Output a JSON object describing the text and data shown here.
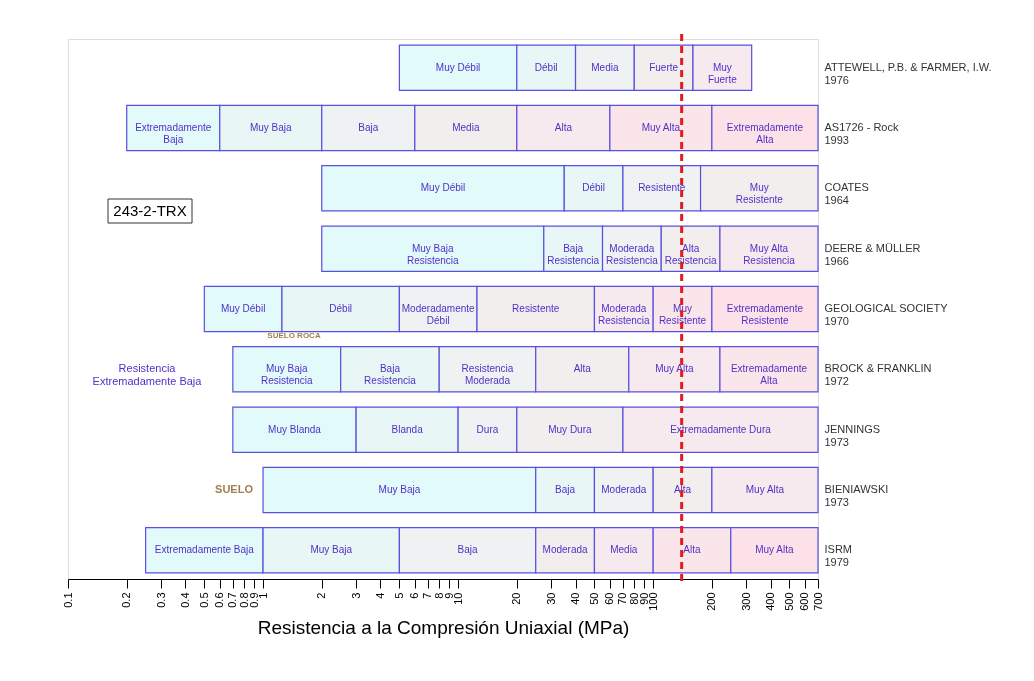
{
  "chart_data": {
    "type": "bar",
    "orientation": "horizontal",
    "log": "x",
    "xlabel": "Resistencia a la Compresión Uniaxial (MPa)",
    "categories": [
      "ATTEWELL, P.B. & FARMER, I.W.\n1976",
      "AS1726 - Rock\n1993",
      "COATES\n1964",
      "DEERE & MÜLLER\n1966",
      "GEOLOGICAL SOCIETY\n1970",
      "BROCK & FRANKLIN\n1972",
      "JENNINGS\n1973",
      "BIENIAWSKI\n1973",
      "ISRM\n1979"
    ],
    "xlim": [
      0.1,
      700
    ],
    "xticks": [
      0.1,
      0.2,
      0.3,
      0.4,
      0.5,
      0.6,
      0.7,
      0.8,
      0.9,
      1,
      2,
      3,
      4,
      5,
      6,
      7,
      8,
      9,
      10,
      20,
      30,
      40,
      50,
      60,
      70,
      80,
      90,
      100,
      200,
      300,
      400,
      500,
      600,
      700
    ],
    "grid": false,
    "legend": false,
    "tick_labels": "x",
    "series": [
      {
        "color": "#e2fafa",
        "base": [
          5,
          0.2,
          2,
          2,
          0.5,
          0.7,
          0.7,
          1,
          0.25
        ],
        "values": [
          15,
          0.4,
          33,
          25.5,
          0.75,
          1.8,
          2.3,
          24,
          0.75
        ],
        "value_labels": [
          "Muy Débil",
          "Extremadamente\nBaja",
          "Muy Débil",
          "Muy Baja\nResistencia",
          "Muy Débil",
          "Muy Baja\nResistencia",
          "Muy Blanda",
          "Muy Baja",
          "Extremadamente Baja"
        ]
      },
      {
        "color": "#e8f6f6",
        "base": [
          20,
          0.6,
          35,
          27.5,
          1.25,
          2.5,
          3,
          25,
          1
        ],
        "values": [
          20,
          1.4,
          35,
          27.5,
          3.75,
          5.5,
          7,
          25,
          4
        ],
        "value_labels": [
          "Débil",
          "Muy Baja",
          "Débil",
          "Baja\nResistencia",
          "Débil",
          "Baja\nResistencia",
          "Blanda",
          "Baja",
          "Muy Baja"
        ]
      },
      {
        "color": "#eef2f2",
        "base": [
          40,
          2,
          70,
          55,
          5,
          8,
          10,
          50,
          5
        ],
        "values": [
          40,
          4,
          105,
          55,
          7.5,
          17,
          10,
          50,
          20
        ],
        "value_labels": [
          "Media",
          "Baja",
          "Resistente",
          "Moderada\nResistencia",
          "Moderadamente\nDébil",
          "Resistencia\nModerada",
          "Dura",
          "Moderada",
          "Baja"
        ]
      },
      {
        "color": "#f3eeee",
        "base": [
          80,
          6,
          175,
          110,
          12.5,
          25,
          20,
          100,
          25
        ],
        "values": [
          80,
          14,
          525,
          110,
          37.5,
          50,
          50,
          100,
          25
        ],
        "value_labels": [
          "Fuerte",
          "Media",
          "Muy\nResistente",
          "Alta\nResistencia",
          "Resistente",
          "Alta",
          "Muy Dura",
          "Alta",
          "Moderada"
        ]
      },
      {
        "color": "#f7eaee",
        "base": [
          160,
          20,
          null,
          220,
          50,
          75,
          70,
          200,
          50
        ],
        "values": [
          160,
          40,
          null,
          480,
          50,
          145,
          630,
          500,
          50
        ],
        "value_labels": [
          "Muy\nFuerte",
          "Alta",
          null,
          "Muy Alta\nResistencia",
          "Moderada\nResistencia",
          "Muy Alta",
          "Extremadamente Dura",
          "Muy Alta",
          "Media"
        ]
      },
      {
        "color": "#fae6ea",
        "base": [
          null,
          60,
          null,
          null,
          100,
          220,
          null,
          null,
          100
        ],
        "values": [
          null,
          140,
          null,
          null,
          100,
          480,
          null,
          null,
          150
        ],
        "value_labels": [
          null,
          "Muy Alta",
          null,
          null,
          "Muy\nResistente",
          "Extremadamente\nAlta",
          null,
          null,
          "Alta"
        ]
      },
      {
        "color": "#fce2e8",
        "base": [
          null,
          200,
          null,
          null,
          200,
          null,
          null,
          null,
          250
        ],
        "values": [
          null,
          500,
          null,
          null,
          500,
          null,
          null,
          null,
          450
        ],
        "value_labels": [
          null,
          "Extremadamente\nAlta",
          null,
          null,
          "Extremadamente\nResistente",
          null,
          null,
          null,
          "Muy Alta"
        ]
      }
    ],
    "ref_lines": [
      {
        "axis": "x",
        "value": 140,
        "color": "#e31a1c",
        "line_style": "dashed"
      }
    ],
    "annotations": [
      "243-2-TRX",
      "SUELO  ROCA",
      "Resistencia\nExtremadamente Baja",
      "SUELO"
    ]
  }
}
